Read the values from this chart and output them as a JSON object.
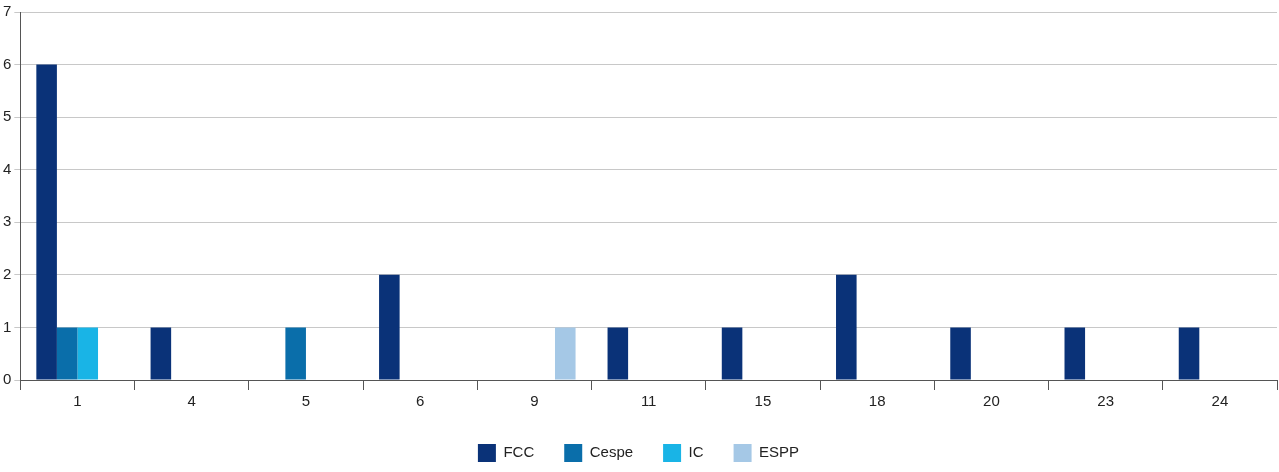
{
  "chart_data": {
    "type": "bar",
    "categories": [
      "1",
      "4",
      "5",
      "6",
      "9",
      "11",
      "15",
      "18",
      "20",
      "23",
      "24"
    ],
    "series": [
      {
        "name": "FCC",
        "color": "#0a3278",
        "values": [
          6,
          1,
          0,
          2,
          0,
          1,
          1,
          2,
          1,
          1,
          1
        ]
      },
      {
        "name": "Cespe",
        "color": "#0a6eaa",
        "values": [
          1,
          0,
          1,
          0,
          0,
          0,
          0,
          0,
          0,
          0,
          0
        ]
      },
      {
        "name": "IC",
        "color": "#19b4e6",
        "values": [
          1,
          0,
          0,
          0,
          0,
          0,
          0,
          0,
          0,
          0,
          0
        ]
      },
      {
        "name": "ESPP",
        "color": "#a5c8e6",
        "values": [
          0,
          0,
          0,
          0,
          1,
          0,
          0,
          0,
          0,
          0,
          0
        ]
      }
    ],
    "ylim": [
      0,
      7
    ],
    "yticks": [
      0,
      1,
      2,
      3,
      4,
      5,
      6,
      7
    ],
    "grid": "y",
    "legend": "bottom"
  }
}
